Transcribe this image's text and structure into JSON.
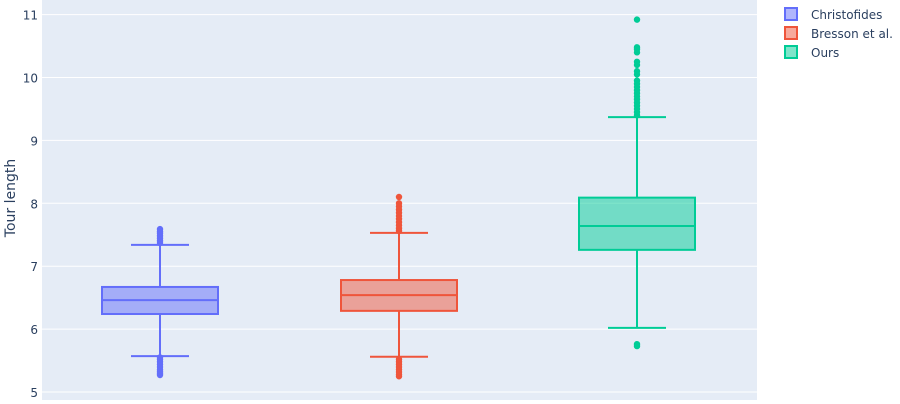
{
  "chart_data": {
    "type": "box",
    "ylabel": "Tour length",
    "ylim": [
      5,
      11.05
    ],
    "yticks": [
      5,
      6,
      7,
      8,
      9,
      10,
      11
    ],
    "grid": true,
    "legend_position": "top-right",
    "series": [
      {
        "name": "Christofides",
        "color": "#636efa",
        "lowerfence": 5.57,
        "q1": 6.24,
        "median": 6.46,
        "q3": 6.67,
        "upperfence": 7.34,
        "outliers": [
          5.27,
          5.3,
          5.33,
          5.36,
          5.4,
          5.44,
          5.48,
          5.52,
          5.55,
          7.37,
          7.4,
          7.44,
          7.48,
          7.52,
          7.55,
          7.59
        ]
      },
      {
        "name": "Bresson et al.",
        "color": "#ef553b",
        "lowerfence": 5.56,
        "q1": 6.29,
        "median": 6.54,
        "q3": 6.78,
        "upperfence": 7.53,
        "outliers": [
          5.25,
          5.28,
          5.32,
          5.36,
          5.4,
          5.44,
          5.48,
          5.52,
          7.56,
          7.6,
          7.65,
          7.7,
          7.75,
          7.8,
          7.85,
          7.9,
          7.95,
          8.0,
          8.1
        ]
      },
      {
        "name": "Ours",
        "color": "#00cc96",
        "lowerfence": 6.02,
        "q1": 7.26,
        "median": 7.64,
        "q3": 8.09,
        "upperfence": 9.37,
        "outliers": [
          5.73,
          5.76,
          9.4,
          9.45,
          9.5,
          9.55,
          9.6,
          9.65,
          9.7,
          9.75,
          9.8,
          9.85,
          9.9,
          9.95,
          10.05,
          10.1,
          10.2,
          10.25,
          10.4,
          10.45,
          10.48,
          10.92
        ]
      }
    ]
  }
}
